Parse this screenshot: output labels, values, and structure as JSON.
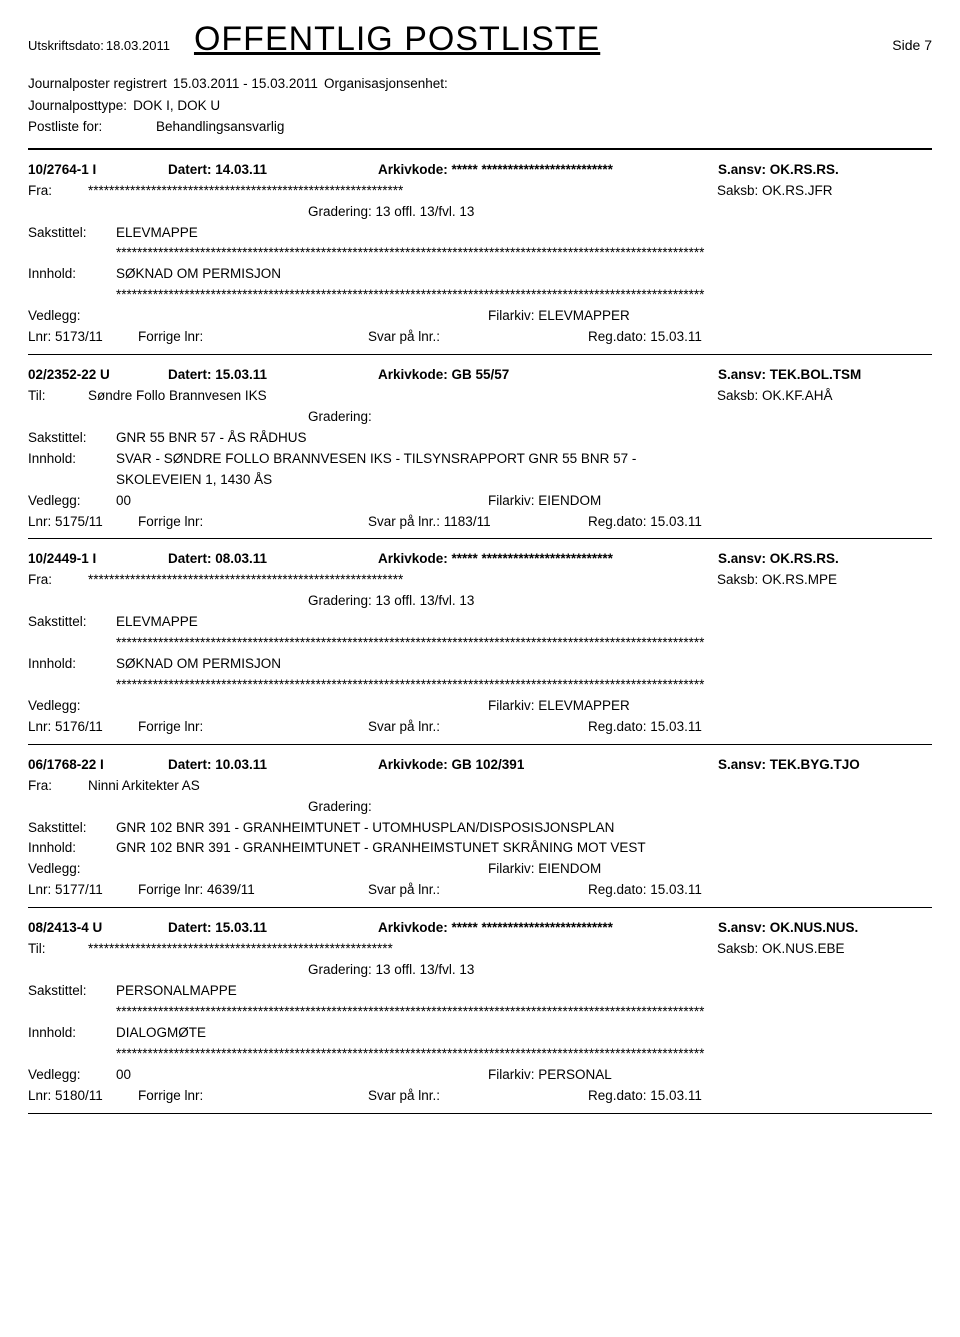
{
  "header": {
    "print_date_label": "Utskriftsdato:",
    "print_date_value": "18.03.2011",
    "title": "OFFENTLIG POSTLISTE",
    "side": "Side 7"
  },
  "meta": {
    "line1_label": "Journalposter registrert",
    "line1_range": "15.03.2011 - 15.03.2011",
    "line1_org": "Organisasjonsenhet:",
    "line2_label": "Journalposttype:",
    "line2_val": "DOK I, DOK U",
    "line3_label": "Postliste for:",
    "line3_val": "Behandlingsansvarlig"
  },
  "labels": {
    "datert": "Datert:",
    "arkivkode": "Arkivkode:",
    "sansv": "S.ansv:",
    "fra": "Fra:",
    "til": "Til:",
    "saksb": "Saksb:",
    "gradering": "Gradering:",
    "sakstittel": "Sakstittel:",
    "innhold": "Innhold:",
    "vedlegg": "Vedlegg:",
    "filarkiv": "Filarkiv:",
    "lnr": "Lnr:",
    "forrige": "Forrige lnr:",
    "svar": "Svar på lnr.:",
    "regdato": "Reg.dato:"
  },
  "entries": [
    {
      "ref": "10/2764-1 I",
      "datert": "14.03.11",
      "arkivkode": "***** *************************",
      "sansv": "OK.RS.RS.",
      "party_label": "Fra:",
      "party": "************************************************************",
      "saksb": "OK.RS.JFR",
      "gradering": "13 offl. 13/fvl. 13",
      "sakstittel": "ELEVMAPPE",
      "sakstittel_stars": true,
      "innhold": "SØKNAD OM PERMISJON",
      "innhold_stars": true,
      "vedlegg": "",
      "filarkiv": "ELEVMAPPER",
      "lnr": "5173/11",
      "forrige": "",
      "svar": "",
      "regdato": "15.03.11"
    },
    {
      "ref": "02/2352-22 U",
      "datert": "15.03.11",
      "arkivkode": "GB 55/57",
      "sansv": "TEK.BOL.TSM",
      "party_label": "Til:",
      "party": "Søndre Follo Brannvesen IKS",
      "saksb": "OK.KF.AHÅ",
      "gradering": "",
      "sakstittel": "GNR 55 BNR 57 - ÅS RÅDHUS",
      "sakstittel_stars": false,
      "innhold": "SVAR - SØNDRE FOLLO BRANNVESEN IKS  - TILSYNSRAPPORT  GNR 55 BNR 57 -",
      "innhold_line2": "SKOLEVEIEN 1, 1430 ÅS",
      "innhold_stars": false,
      "vedlegg": "00",
      "filarkiv": "EIENDOM",
      "lnr": "5175/11",
      "forrige": "",
      "svar": "1183/11",
      "regdato": "15.03.11"
    },
    {
      "ref": "10/2449-1 I",
      "datert": "08.03.11",
      "arkivkode": "***** *************************",
      "sansv": "OK.RS.RS.",
      "party_label": "Fra:",
      "party": "************************************************************",
      "saksb": "OK.RS.MPE",
      "gradering": "13 offl. 13/fvl. 13",
      "sakstittel": "ELEVMAPPE",
      "sakstittel_stars": true,
      "innhold": "SØKNAD OM PERMISJON",
      "innhold_stars": true,
      "vedlegg": "",
      "filarkiv": "ELEVMAPPER",
      "lnr": "5176/11",
      "forrige": "",
      "svar": "",
      "regdato": "15.03.11"
    },
    {
      "ref": "06/1768-22 I",
      "datert": "10.03.11",
      "arkivkode": "GB 102/391",
      "sansv": "TEK.BYG.TJO",
      "party_label": "Fra:",
      "party": "Ninni Arkitekter AS",
      "saksb": "",
      "gradering": "",
      "sakstittel": "GNR 102 BNR 391 - GRANHEIMTUNET - UTOMHUSPLAN/DISPOSISJONSPLAN",
      "sakstittel_stars": false,
      "innhold": "GNR 102 BNR 391 - GRANHEIMTUNET   - GRANHEIMSTUNET SKRÅNING MOT VEST",
      "innhold_stars": false,
      "vedlegg": "",
      "filarkiv": "EIENDOM",
      "lnr": "5177/11",
      "forrige": "4639/11",
      "svar": "",
      "regdato": "15.03.11"
    },
    {
      "ref": "08/2413-4 U",
      "datert": "15.03.11",
      "arkivkode": "***** *************************",
      "sansv": "OK.NUS.NUS.",
      "party_label": "Til:",
      "party": "**********************************************************",
      "saksb": "OK.NUS.EBE",
      "gradering": "13 offl. 13/fvl. 13",
      "sakstittel": "PERSONALMAPPE",
      "sakstittel_stars": true,
      "innhold": "DIALOGMØTE",
      "innhold_stars": true,
      "vedlegg": "00",
      "filarkiv": "PERSONAL",
      "lnr": "5180/11",
      "forrige": "",
      "svar": "",
      "regdato": "15.03.11"
    }
  ],
  "long_stars": "****************************************************************************************************************"
}
